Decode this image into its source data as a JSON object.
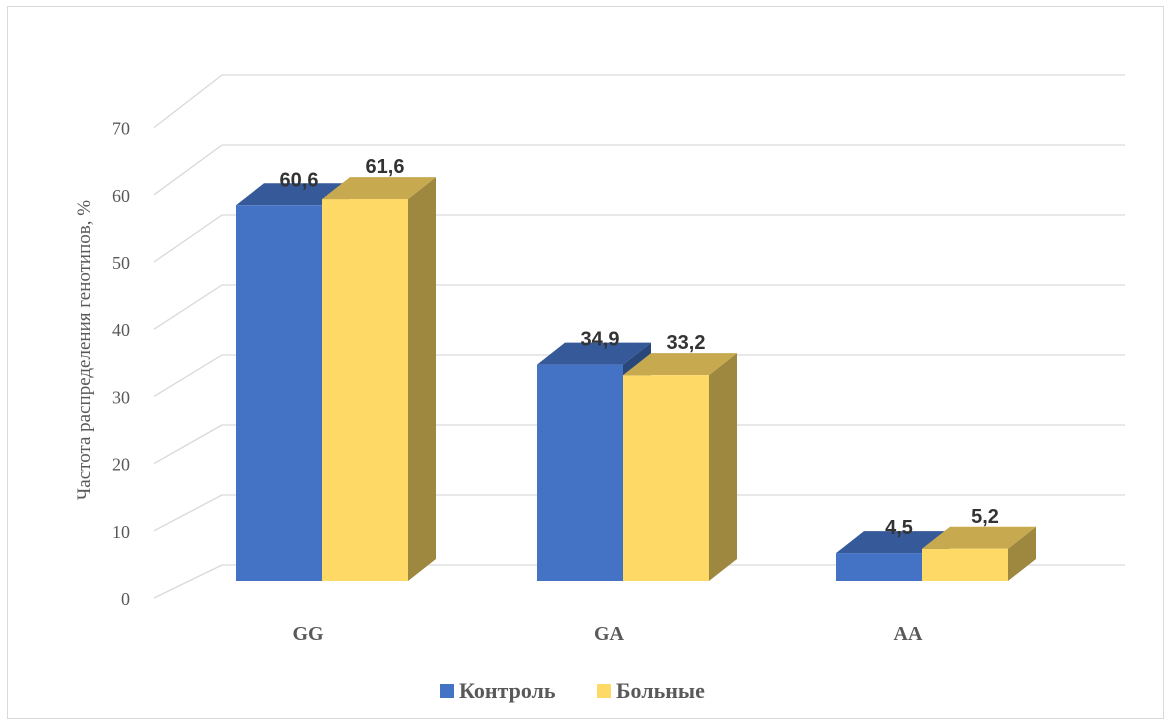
{
  "chart_data": {
    "type": "bar",
    "title": "",
    "xlabel": "",
    "ylabel": "Частота распределения генотипов, %",
    "categories": [
      "GG",
      "GA",
      "AA"
    ],
    "series": [
      {
        "name": "Контроль",
        "values": [
          60.6,
          34.9,
          4.5
        ],
        "labels": [
          "60,6",
          "34,9",
          "4,5"
        ],
        "color": "#4472c4"
      },
      {
        "name": "Больные",
        "values": [
          61.6,
          33.2,
          5.2
        ],
        "labels": [
          "61,6",
          "33,2",
          "5,2"
        ],
        "color": "#ffd966"
      }
    ],
    "ylim": [
      0,
      70
    ],
    "yticks": [
      0,
      10,
      20,
      30,
      40,
      50,
      60,
      70
    ],
    "grid": true,
    "legend": "bottom",
    "style": "3d-clustered-column"
  }
}
